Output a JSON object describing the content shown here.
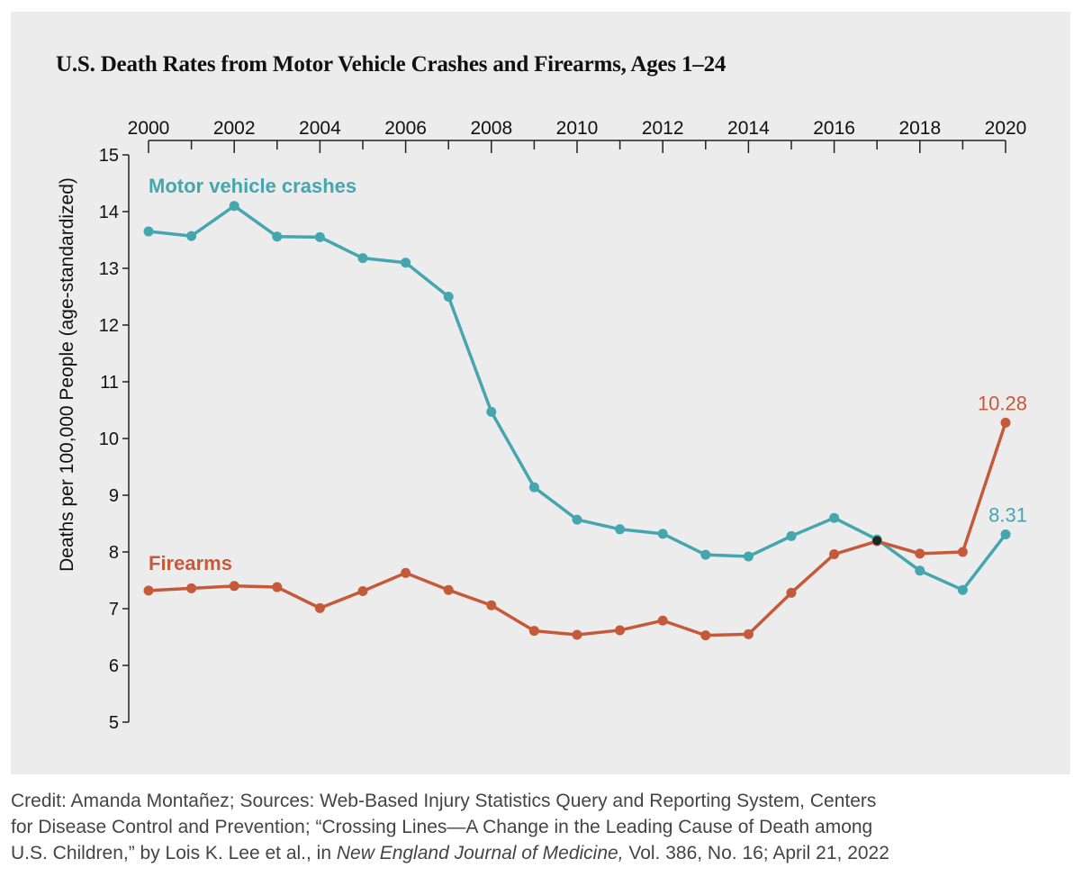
{
  "chart_data": {
    "type": "line",
    "title": "U.S. Death Rates from Motor Vehicle Crashes and Firearms, Ages 1–24",
    "ylabel": "Deaths per 100,000 People (age-standardized)",
    "xlabel": "",
    "x": [
      2000,
      2001,
      2002,
      2003,
      2004,
      2005,
      2006,
      2007,
      2008,
      2009,
      2010,
      2011,
      2012,
      2013,
      2014,
      2015,
      2016,
      2017,
      2018,
      2019,
      2020
    ],
    "x_tick_labels": [
      "2000",
      "2002",
      "2004",
      "2006",
      "2008",
      "2010",
      "2012",
      "2014",
      "2016",
      "2018",
      "2020"
    ],
    "y_tick_labels": [
      "5",
      "6",
      "7",
      "8",
      "9",
      "10",
      "11",
      "12",
      "13",
      "14",
      "15"
    ],
    "xlim": [
      2000,
      2020
    ],
    "ylim": [
      5,
      15
    ],
    "x_axis_position": "top",
    "grid": false,
    "series": [
      {
        "name": "Motor vehicle crashes",
        "color": "#45a6b0",
        "values": [
          13.65,
          13.57,
          14.1,
          13.56,
          13.55,
          13.18,
          13.1,
          12.5,
          10.47,
          9.14,
          8.57,
          8.4,
          8.32,
          7.95,
          7.92,
          8.28,
          8.6,
          8.22,
          7.67,
          7.33,
          8.31
        ],
        "end_label": "8.31"
      },
      {
        "name": "Firearms",
        "color": "#c55a3a",
        "values": [
          7.32,
          7.36,
          7.4,
          7.38,
          7.01,
          7.31,
          7.63,
          7.33,
          7.06,
          6.61,
          6.54,
          6.62,
          6.79,
          6.53,
          6.55,
          7.28,
          7.96,
          8.19,
          7.97,
          8.0,
          10.28
        ],
        "end_label": "10.28"
      }
    ]
  },
  "credit": {
    "line1": "Credit: Amanda Montañez; Sources: Web-Based Injury Statistics Query and Reporting System, Centers",
    "line2": "for Disease Control and Prevention; “Crossing Lines—A Change in the Leading Cause of Death among",
    "line3_pre": "U.S. Children,” by Lois K. Lee et al., in ",
    "line3_journal": "New England Journal of Medicine,",
    "line3_post": " Vol. 386, No. 16; April 21, 2022"
  }
}
